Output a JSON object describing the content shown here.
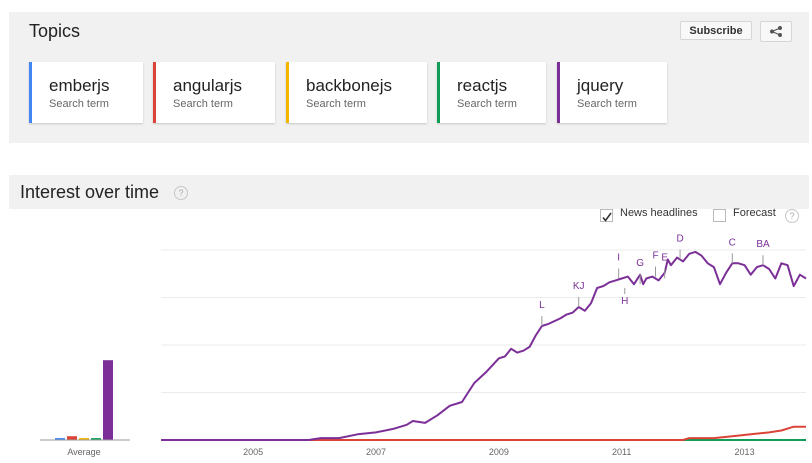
{
  "topics": {
    "title": "Topics",
    "subscribe_label": "Subscribe",
    "share_icon": "share-icon",
    "terms": [
      {
        "name": "emberjs",
        "sub": "Search term",
        "color": "#4285f4"
      },
      {
        "name": "angularjs",
        "sub": "Search term",
        "color": "#db4437"
      },
      {
        "name": "backbonejs",
        "sub": "Search term",
        "color": "#f4b400"
      },
      {
        "name": "reactjs",
        "sub": "Search term",
        "color": "#0f9d58"
      },
      {
        "name": "jquery",
        "sub": "Search term",
        "color": "#7b2f97"
      }
    ]
  },
  "interest": {
    "title": "Interest over time",
    "help": "?",
    "news_label": "News headlines",
    "news_checked": true,
    "forecast_label": "Forecast",
    "forecast_checked": false,
    "forecast_help": "?"
  },
  "chart_data": {
    "type": "line",
    "title": "",
    "xlabel": "",
    "ylabel": "",
    "ylim": [
      0,
      100
    ],
    "grid": true,
    "x_ticks": [
      "2005",
      "2007",
      "2009",
      "2011",
      "2013"
    ],
    "x_range": [
      2004.0,
      2014.5
    ],
    "average_label": "Average",
    "averages": [
      {
        "name": "emberjs",
        "value": 1
      },
      {
        "name": "angularjs",
        "value": 2
      },
      {
        "name": "backbonejs",
        "value": 1
      },
      {
        "name": "reactjs",
        "value": 1
      },
      {
        "name": "jquery",
        "value": 42
      }
    ],
    "series": [
      {
        "name": "emberjs",
        "color": "#4285f4",
        "points": [
          [
            2004.0,
            0
          ],
          [
            2014.5,
            0
          ]
        ]
      },
      {
        "name": "backbonejs",
        "color": "#f4b400",
        "points": [
          [
            2004.0,
            0
          ],
          [
            2014.5,
            0
          ]
        ]
      },
      {
        "name": "reactjs",
        "color": "#0f9d58",
        "points": [
          [
            2004.0,
            0
          ],
          [
            2014.5,
            0
          ]
        ]
      },
      {
        "name": "angularjs",
        "color": "#db4437",
        "points": [
          [
            2004.0,
            0
          ],
          [
            2012.5,
            0
          ],
          [
            2012.6,
            1
          ],
          [
            2013.0,
            1
          ],
          [
            2013.3,
            2
          ],
          [
            2013.6,
            3
          ],
          [
            2013.9,
            4
          ],
          [
            2014.1,
            5
          ],
          [
            2014.3,
            7
          ],
          [
            2014.5,
            7
          ]
        ]
      },
      {
        "name": "jquery",
        "color": "#7b2f97",
        "points": [
          [
            2004.0,
            0
          ],
          [
            2006.4,
            0
          ],
          [
            2006.6,
            1
          ],
          [
            2006.9,
            1
          ],
          [
            2007.2,
            3
          ],
          [
            2007.5,
            4
          ],
          [
            2007.8,
            6
          ],
          [
            2008.0,
            8
          ],
          [
            2008.1,
            10
          ],
          [
            2008.3,
            9
          ],
          [
            2008.5,
            13
          ],
          [
            2008.7,
            18
          ],
          [
            2008.9,
            20
          ],
          [
            2009.0,
            25
          ],
          [
            2009.1,
            30
          ],
          [
            2009.3,
            36
          ],
          [
            2009.5,
            43
          ],
          [
            2009.6,
            44
          ],
          [
            2009.7,
            48
          ],
          [
            2009.8,
            46
          ],
          [
            2009.9,
            47
          ],
          [
            2010.0,
            49
          ],
          [
            2010.1,
            55
          ],
          [
            2010.2,
            60
          ],
          [
            2010.3,
            61
          ],
          [
            2010.5,
            64
          ],
          [
            2010.6,
            66
          ],
          [
            2010.7,
            67
          ],
          [
            2010.8,
            70
          ],
          [
            2010.9,
            68
          ],
          [
            2011.0,
            72
          ],
          [
            2011.1,
            80
          ],
          [
            2011.2,
            81
          ],
          [
            2011.3,
            83
          ],
          [
            2011.4,
            84
          ],
          [
            2011.5,
            85
          ],
          [
            2011.6,
            86
          ],
          [
            2011.7,
            82
          ],
          [
            2011.8,
            87
          ],
          [
            2011.85,
            82
          ],
          [
            2011.9,
            85
          ],
          [
            2012.0,
            86
          ],
          [
            2012.1,
            84
          ],
          [
            2012.2,
            88
          ],
          [
            2012.25,
            95
          ],
          [
            2012.3,
            92
          ],
          [
            2012.4,
            96
          ],
          [
            2012.5,
            94
          ],
          [
            2012.6,
            98
          ],
          [
            2012.7,
            99
          ],
          [
            2012.8,
            97
          ],
          [
            2012.9,
            93
          ],
          [
            2013.0,
            91
          ],
          [
            2013.1,
            82
          ],
          [
            2013.2,
            88
          ],
          [
            2013.3,
            93
          ],
          [
            2013.4,
            93
          ],
          [
            2013.5,
            92
          ],
          [
            2013.6,
            87
          ],
          [
            2013.7,
            91
          ],
          [
            2013.8,
            92
          ],
          [
            2013.9,
            90
          ],
          [
            2014.0,
            85
          ],
          [
            2014.1,
            93
          ],
          [
            2014.2,
            92
          ],
          [
            2014.3,
            81
          ],
          [
            2014.4,
            87
          ],
          [
            2014.5,
            85
          ]
        ]
      }
    ],
    "annotations": [
      {
        "label": "L",
        "x": 2010.2,
        "y": 60
      },
      {
        "label": "KJ",
        "x": 2010.8,
        "y": 70
      },
      {
        "label": "I",
        "x": 2011.45,
        "y": 85
      },
      {
        "label": "H",
        "x": 2011.55,
        "y": 80
      },
      {
        "label": "G",
        "x": 2011.8,
        "y": 82
      },
      {
        "label": "F",
        "x": 2012.05,
        "y": 86
      },
      {
        "label": "E",
        "x": 2012.2,
        "y": 85
      },
      {
        "label": "D",
        "x": 2012.45,
        "y": 95
      },
      {
        "label": "C",
        "x": 2013.3,
        "y": 93
      },
      {
        "label": "BA",
        "x": 2013.8,
        "y": 92
      }
    ]
  }
}
